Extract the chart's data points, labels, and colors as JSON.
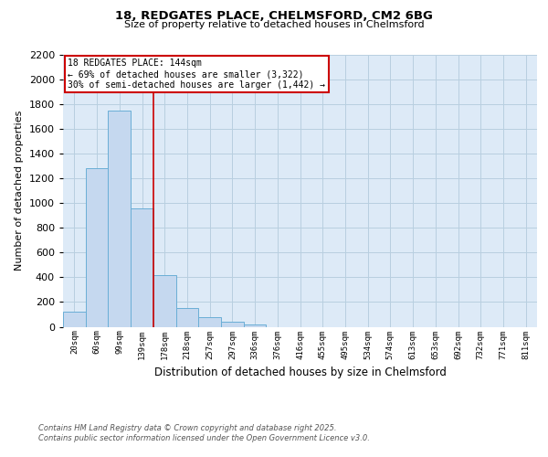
{
  "title1": "18, REDGATES PLACE, CHELMSFORD, CM2 6BG",
  "title2": "Size of property relative to detached houses in Chelmsford",
  "xlabel": "Distribution of detached houses by size in Chelmsford",
  "ylabel": "Number of detached properties",
  "bin_labels": [
    "20sqm",
    "60sqm",
    "99sqm",
    "139sqm",
    "178sqm",
    "218sqm",
    "257sqm",
    "297sqm",
    "336sqm",
    "376sqm",
    "416sqm",
    "455sqm",
    "495sqm",
    "534sqm",
    "574sqm",
    "613sqm",
    "653sqm",
    "692sqm",
    "732sqm",
    "771sqm",
    "811sqm"
  ],
  "bar_values": [
    120,
    1280,
    1750,
    960,
    420,
    150,
    75,
    40,
    20,
    0,
    0,
    0,
    0,
    0,
    0,
    0,
    0,
    0,
    0,
    0,
    0
  ],
  "bar_color": "#c5d8ef",
  "bar_edge_color": "#6aaed6",
  "grid_color": "#b8cfe0",
  "background_color": "#ddeaf7",
  "red_line_color": "#cc0000",
  "annotation_line1": "18 REDGATES PLACE: 144sqm",
  "annotation_line2": "← 69% of detached houses are smaller (3,322)",
  "annotation_line3": "30% of semi-detached houses are larger (1,442) →",
  "annotation_box_color": "#cc0000",
  "footer1": "Contains HM Land Registry data © Crown copyright and database right 2025.",
  "footer2": "Contains public sector information licensed under the Open Government Licence v3.0.",
  "ylim": [
    0,
    2200
  ],
  "yticks": [
    0,
    200,
    400,
    600,
    800,
    1000,
    1200,
    1400,
    1600,
    1800,
    2000,
    2200
  ],
  "red_line_bin_index": 3
}
